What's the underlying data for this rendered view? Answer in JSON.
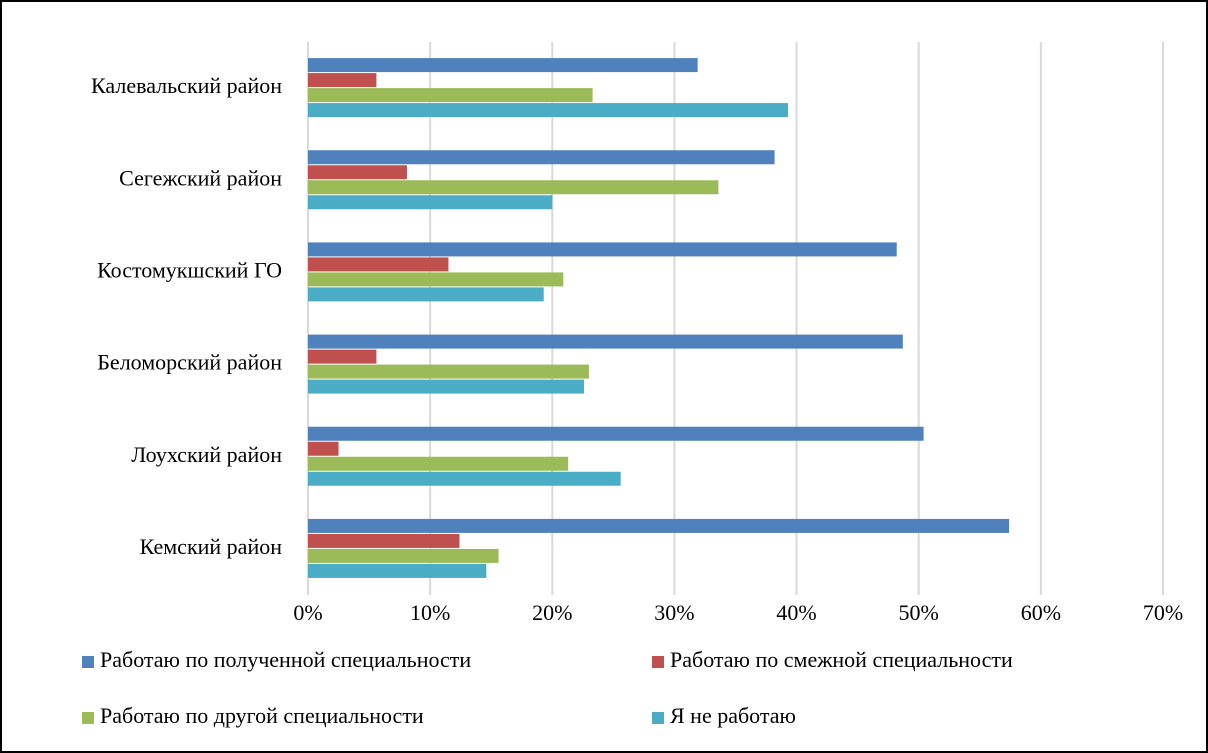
{
  "chart_data": {
    "type": "hbar",
    "categories": [
      "Калевальский район",
      "Сегежский район",
      "Костомукшский ГО",
      "Беломорский район",
      "Лоухский район",
      "Кемский район"
    ],
    "series": [
      {
        "name": "Работаю по полученной специальности",
        "color": "#4f81bd",
        "values": [
          31.9,
          38.2,
          48.2,
          48.7,
          50.4,
          57.4
        ]
      },
      {
        "name": "Работаю по смежной специальности",
        "color": "#c0504d",
        "values": [
          5.6,
          8.1,
          11.5,
          5.6,
          2.5,
          12.4
        ]
      },
      {
        "name": "Работаю по другой специальности",
        "color": "#9bbb59",
        "values": [
          23.3,
          33.6,
          20.9,
          23.0,
          21.3,
          15.6
        ]
      },
      {
        "name": "Я не работаю",
        "color": "#4bacc6",
        "values": [
          39.3,
          20.0,
          19.3,
          22.6,
          25.6,
          14.6
        ]
      }
    ],
    "xlim": [
      0,
      70
    ],
    "xticks": [
      {
        "value": 0,
        "label": "0%"
      },
      {
        "value": 10,
        "label": "10%"
      },
      {
        "value": 20,
        "label": "20%"
      },
      {
        "value": 30,
        "label": "30%"
      },
      {
        "value": 40,
        "label": "40%"
      },
      {
        "value": 50,
        "label": "50%"
      },
      {
        "value": 60,
        "label": "60%"
      },
      {
        "value": 70,
        "label": "70%"
      }
    ],
    "grid": true,
    "legend": "bottom"
  }
}
